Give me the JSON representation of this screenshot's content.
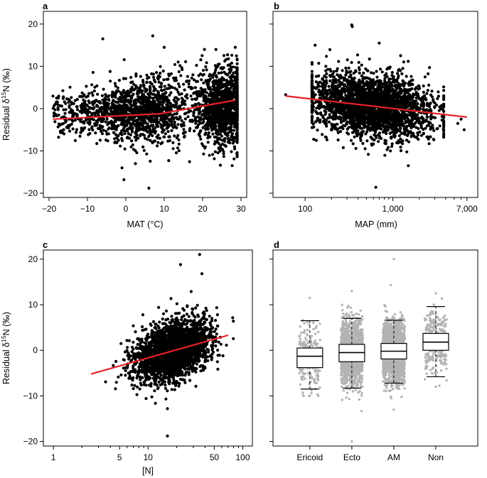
{
  "chart_data": [
    {
      "panel": "a",
      "type": "scatter",
      "xlabel": "MAT (°C)",
      "ylabel": "Residual δ15N (‰)",
      "ylabel_parts": {
        "pre": "Residual δ",
        "sup": "15",
        "post": "N (‰)"
      },
      "xscale": "linear",
      "xlim": [
        -20,
        30
      ],
      "ylim": [
        -21,
        23
      ],
      "xticks": [
        -20,
        -10,
        0,
        10,
        20,
        30
      ],
      "xtick_labels": [
        "−20",
        "−10",
        "0",
        "10",
        "20",
        "30"
      ],
      "yticks": [
        -20,
        -10,
        0,
        10,
        20
      ],
      "ytick_labels": [
        "−20",
        "−10",
        "0",
        "10",
        "20"
      ],
      "fit_line": {
        "color": "#e8202a",
        "x": [
          -19,
          9,
          28.5
        ],
        "y": [
          -2.5,
          -1.2,
          2.0
        ]
      },
      "point_cloud": {
        "color": "#000000",
        "x_range": [
          -19,
          29
        ],
        "density_peaks_x": [
          5,
          25
        ],
        "y_mean_range": [
          -1.5,
          0.5
        ],
        "y_spread": 4.5
      },
      "outliers": [
        {
          "x": -6,
          "y": 16.5
        },
        {
          "x": 7,
          "y": 17.2
        },
        {
          "x": 10,
          "y": 14.5
        },
        {
          "x": 28.5,
          "y": 14.5
        },
        {
          "x": -1,
          "y": -14
        },
        {
          "x": -0.5,
          "y": -16.8
        },
        {
          "x": 6,
          "y": -18.8
        },
        {
          "x": 2.5,
          "y": -13
        }
      ]
    },
    {
      "panel": "b",
      "type": "scatter",
      "xlabel": "MAP (mm)",
      "ylabel": "",
      "xscale": "log",
      "xlim": [
        50,
        8000
      ],
      "ylim": [
        -21,
        23
      ],
      "xticks": [
        100,
        1000,
        7000
      ],
      "xtick_labels": [
        "100",
        "1,000",
        "7,000"
      ],
      "minor_xticks": [
        200,
        300,
        400,
        500,
        600,
        700,
        800,
        900,
        2000,
        3000,
        4000,
        5000,
        6000
      ],
      "yticks": [
        -20,
        -10,
        0,
        10,
        20
      ],
      "fit_line": {
        "color": "#e8202a",
        "x": [
          60,
          7000
        ],
        "y": [
          3.0,
          -2.0
        ]
      },
      "point_cloud": {
        "color": "#000000",
        "x_range": [
          120,
          3800
        ],
        "y_mean_range": [
          2.5,
          -1.5
        ],
        "y_spread": 4.2
      },
      "outliers": [
        {
          "x": 60,
          "y": 3.3
        },
        {
          "x": 340,
          "y": 19.8
        },
        {
          "x": 345,
          "y": 19.4
        },
        {
          "x": 130,
          "y": 15.0
        },
        {
          "x": 700,
          "y": 15.5
        },
        {
          "x": 640,
          "y": -18.6
        },
        {
          "x": 1500,
          "y": -13.5
        },
        {
          "x": 5500,
          "y": -3.5
        },
        {
          "x": 6500,
          "y": -5.0
        },
        {
          "x": 6000,
          "y": -2.5
        }
      ]
    },
    {
      "panel": "c",
      "type": "scatter",
      "xlabel": "[N]",
      "ylabel": "Residual δ15N (‰)",
      "ylabel_parts": {
        "pre": "Residual δ",
        "sup": "15",
        "post": "N (‰)"
      },
      "xscale": "log",
      "xlim": [
        0.9,
        110
      ],
      "ylim": [
        -21,
        22
      ],
      "xticks": [
        1,
        5,
        10,
        50,
        100
      ],
      "xtick_labels": [
        "1",
        "5",
        "10",
        "50",
        "100"
      ],
      "minor_xticks": [
        2,
        3,
        4,
        6,
        7,
        8,
        9,
        20,
        30,
        40,
        60,
        70,
        80,
        90
      ],
      "yticks": [
        -20,
        -10,
        0,
        10,
        20
      ],
      "ytick_labels": [
        "−20",
        "−10",
        "0",
        "10",
        "20"
      ],
      "fit_line": {
        "color": "#e8202a",
        "x": [
          2.5,
          70
        ],
        "y": [
          -5.2,
          3.3
        ]
      },
      "point_cloud": {
        "color": "#000000",
        "log_x_center": 1.25,
        "log_x_sd": 0.19,
        "y_spread": 4.0
      },
      "outliers": [
        {
          "x": 35,
          "y": 21.0
        },
        {
          "x": 22,
          "y": 18.8
        },
        {
          "x": 37,
          "y": 16.8
        },
        {
          "x": 16,
          "y": -18.8
        },
        {
          "x": 16,
          "y": -12.8
        }
      ]
    },
    {
      "panel": "d",
      "type": "box",
      "categories": [
        "Ericoid",
        "Ecto",
        "AM",
        "Non"
      ],
      "ylim": [
        -21,
        22
      ],
      "yticks": [
        -20,
        -10,
        0,
        10,
        20
      ],
      "box_fill": "#ffffff",
      "jitter_color": "#b3b3b3",
      "boxes": [
        {
          "category": "Ericoid",
          "whisker_low": -8.5,
          "q1": -3.8,
          "median": -1.3,
          "q3": 0.5,
          "whisker_high": 6.5,
          "n_jitter": 220,
          "jitter_low": -10,
          "jitter_high": 11.5
        },
        {
          "category": "Ecto",
          "whisker_low": -8.3,
          "q1": -2.5,
          "median": -0.5,
          "q3": 1.3,
          "whisker_high": 7.0,
          "n_jitter": 1500,
          "jitter_low": -20,
          "jitter_high": 13
        },
        {
          "category": "AM",
          "whisker_low": -7.2,
          "q1": -1.9,
          "median": -0.2,
          "q3": 1.5,
          "whisker_high": 6.6,
          "n_jitter": 2600,
          "jitter_low": -13,
          "jitter_high": 20
        },
        {
          "category": "Non",
          "whisker_low": -5.8,
          "q1": 0.0,
          "median": 1.8,
          "q3": 3.7,
          "whisker_high": 9.6,
          "n_jitter": 340,
          "jitter_low": -8,
          "jitter_high": 12.5
        }
      ]
    }
  ]
}
